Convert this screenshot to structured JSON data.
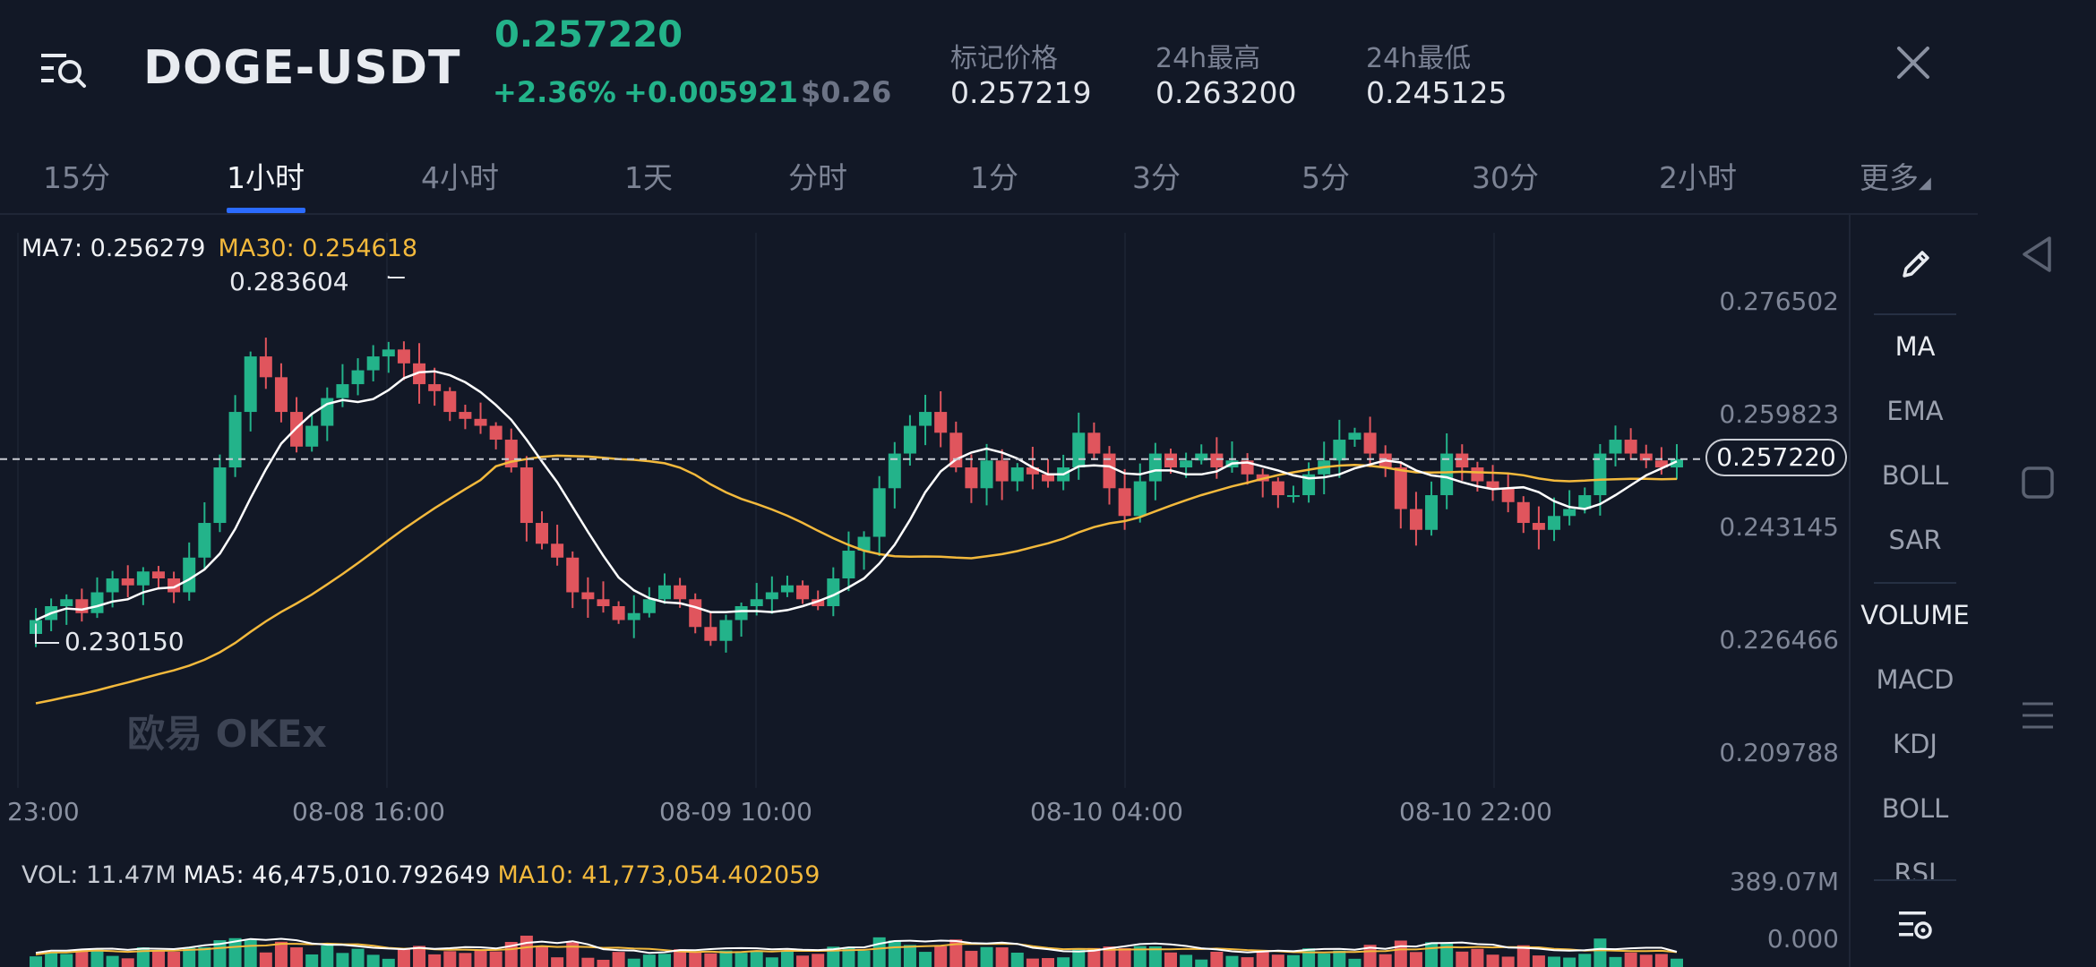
{
  "header": {
    "pair": "DOGE-USDT",
    "last_price": "0.257220",
    "change_pct": "+2.36%",
    "change_abs": "+0.005921",
    "usd_price": "$0.26",
    "stats": [
      {
        "label": "标记价格",
        "value": "0.257219"
      },
      {
        "label": "24h最高",
        "value": "0.263200"
      },
      {
        "label": "24h最低",
        "value": "0.245125"
      }
    ]
  },
  "tabs": [
    "15分",
    "1小时",
    "4小时",
    "1天",
    "分时",
    "1分",
    "3分",
    "5分",
    "30分",
    "2小时",
    "更多"
  ],
  "active_tab": "1小时",
  "indicators": {
    "ma_legend": {
      "ma7": "MA7: 0.256279",
      "ma30": "MA30: 0.254618"
    },
    "vol_legend": {
      "vol": "VOL: 11.47M",
      "ma5": "MA5: 46,475,010.792649",
      "ma10": "MA10: 41,773,054.402059"
    }
  },
  "chart": {
    "y_labels": [
      "0.276502",
      "0.259823",
      "0.243145",
      "0.226466",
      "0.209788"
    ],
    "x_labels": [
      "23:00",
      "08-08 16:00",
      "08-09 10:00",
      "08-10 04:00",
      "08-10 22:00"
    ],
    "current_price_tag": "0.257220",
    "high_label": "0.283604",
    "low_label": "0.230150",
    "vol_y_labels": [
      "389.07M",
      "0.000"
    ],
    "watermark": "欧易 OKEx"
  },
  "panel": {
    "main_items": [
      "MA",
      "EMA",
      "BOLL",
      "SAR"
    ],
    "sub_items": [
      "VOLUME",
      "MACD",
      "KDJ",
      "BOLL",
      "RSI"
    ]
  },
  "colors": {
    "up": "#23b38a",
    "down": "#e0555d",
    "ma7": "#ffffff",
    "ma30": "#f3b93c",
    "accent": "#2b6bff"
  },
  "chart_data": {
    "type": "candlestick",
    "x_range": [
      "23:00",
      "08-11"
    ],
    "ylim": [
      0.2098,
      0.2844
    ],
    "closes": [
      0.234,
      0.236,
      0.237,
      0.235,
      0.238,
      0.24,
      0.239,
      0.241,
      0.24,
      0.238,
      0.243,
      0.248,
      0.256,
      0.264,
      0.272,
      0.269,
      0.264,
      0.259,
      0.262,
      0.266,
      0.268,
      0.27,
      0.272,
      0.273,
      0.271,
      0.268,
      0.267,
      0.264,
      0.263,
      0.262,
      0.26,
      0.256,
      0.248,
      0.245,
      0.243,
      0.238,
      0.237,
      0.236,
      0.234,
      0.235,
      0.237,
      0.239,
      0.237,
      0.233,
      0.231,
      0.234,
      0.236,
      0.237,
      0.238,
      0.239,
      0.237,
      0.236,
      0.24,
      0.244,
      0.246,
      0.253,
      0.258,
      0.262,
      0.264,
      0.261,
      0.256,
      0.253,
      0.257,
      0.254,
      0.256,
      0.255,
      0.254,
      0.256,
      0.261,
      0.258,
      0.253,
      0.249,
      0.254,
      0.258,
      0.256,
      0.257,
      0.258,
      0.256,
      0.257,
      0.255,
      0.254,
      0.252,
      0.252,
      0.255,
      0.257,
      0.26,
      0.261,
      0.258,
      0.256,
      0.25,
      0.247,
      0.252,
      0.258,
      0.256,
      0.254,
      0.253,
      0.251,
      0.248,
      0.247,
      0.249,
      0.25,
      0.252,
      0.258,
      0.26,
      0.258,
      0.257,
      0.256,
      0.2572
    ]
  }
}
